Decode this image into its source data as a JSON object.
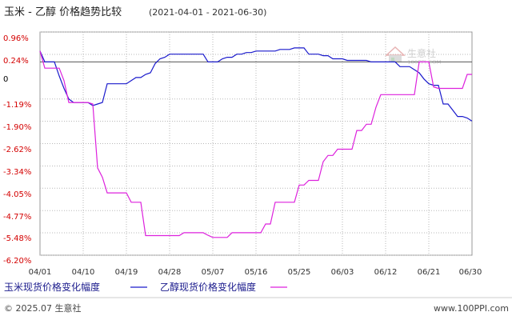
{
  "header": {
    "title": "玉米 - 乙醇 价格趋势比较",
    "date_range": "(2021-04-01 - 2021-06-30)"
  },
  "watermark": {
    "brand": "生意社",
    "url": "100PPI.COM"
  },
  "footer": {
    "copyright": "© 2025.07 生意社",
    "site": "www.100PPI.com"
  },
  "colors": {
    "series_corn": "#1a1acc",
    "series_ethanol": "#dd22dd",
    "axis_label": "#d40000",
    "grid": "#b8b8b8",
    "zero_line": "#555555"
  },
  "chart_data": {
    "type": "line",
    "title": "玉米 - 乙醇 价格趋势比较",
    "xlabel": "",
    "ylabel": "",
    "ylim": [
      -6.2,
      0.96
    ],
    "yticks": [
      "0.96%",
      "0.24%",
      "0",
      "-1.19%",
      "-1.90%",
      "-2.62%",
      "-3.34%",
      "-4.05%",
      "-4.77%",
      "-5.48%",
      "-6.20%"
    ],
    "ytick_values": [
      0.96,
      0.24,
      0,
      -1.19,
      -1.9,
      -2.62,
      -3.34,
      -4.05,
      -4.77,
      -5.48,
      -6.2
    ],
    "xticks": [
      "04/01",
      "04/10",
      "04/19",
      "04/28",
      "05/07",
      "05/16",
      "05/25",
      "06/03",
      "06/12",
      "06/21",
      "06/30"
    ],
    "x_range": [
      "2021-04-01",
      "2021-06-30"
    ],
    "grid": true,
    "legend_position": "bottom",
    "series": [
      {
        "name": "玉米现货价格变化幅度",
        "color": "#1a1acc",
        "points": [
          [
            "2021-04-01",
            0.35
          ],
          [
            "2021-04-02",
            0.0
          ],
          [
            "2021-04-03",
            0.0
          ],
          [
            "2021-04-04",
            0.0
          ],
          [
            "2021-04-05",
            -0.45
          ],
          [
            "2021-04-06",
            -0.85
          ],
          [
            "2021-04-07",
            -1.19
          ],
          [
            "2021-04-08",
            -1.3
          ],
          [
            "2021-04-09",
            -1.3
          ],
          [
            "2021-04-10",
            -1.3
          ],
          [
            "2021-04-11",
            -1.3
          ],
          [
            "2021-04-12",
            -1.4
          ],
          [
            "2021-04-13",
            -1.35
          ],
          [
            "2021-04-14",
            -1.3
          ],
          [
            "2021-04-15",
            -0.7
          ],
          [
            "2021-04-16",
            -0.7
          ],
          [
            "2021-04-17",
            -0.7
          ],
          [
            "2021-04-18",
            -0.7
          ],
          [
            "2021-04-19",
            -0.7
          ],
          [
            "2021-04-20",
            -0.6
          ],
          [
            "2021-04-21",
            -0.5
          ],
          [
            "2021-04-22",
            -0.5
          ],
          [
            "2021-04-23",
            -0.4
          ],
          [
            "2021-04-24",
            -0.35
          ],
          [
            "2021-04-25",
            -0.05
          ],
          [
            "2021-04-26",
            0.1
          ],
          [
            "2021-04-27",
            0.15
          ],
          [
            "2021-04-28",
            0.25
          ],
          [
            "2021-04-29",
            0.25
          ],
          [
            "2021-04-30",
            0.25
          ],
          [
            "2021-05-01",
            0.25
          ],
          [
            "2021-05-02",
            0.25
          ],
          [
            "2021-05-03",
            0.25
          ],
          [
            "2021-05-04",
            0.25
          ],
          [
            "2021-05-05",
            0.25
          ],
          [
            "2021-05-06",
            0.0
          ],
          [
            "2021-05-07",
            0.0
          ],
          [
            "2021-05-08",
            0.0
          ],
          [
            "2021-05-09",
            0.1
          ],
          [
            "2021-05-10",
            0.15
          ],
          [
            "2021-05-11",
            0.15
          ],
          [
            "2021-05-12",
            0.25
          ],
          [
            "2021-05-13",
            0.25
          ],
          [
            "2021-05-14",
            0.3
          ],
          [
            "2021-05-15",
            0.3
          ],
          [
            "2021-05-16",
            0.35
          ],
          [
            "2021-05-17",
            0.35
          ],
          [
            "2021-05-18",
            0.35
          ],
          [
            "2021-05-19",
            0.35
          ],
          [
            "2021-05-20",
            0.35
          ],
          [
            "2021-05-21",
            0.4
          ],
          [
            "2021-05-22",
            0.4
          ],
          [
            "2021-05-23",
            0.4
          ],
          [
            "2021-05-24",
            0.45
          ],
          [
            "2021-05-25",
            0.45
          ],
          [
            "2021-05-26",
            0.45
          ],
          [
            "2021-05-27",
            0.25
          ],
          [
            "2021-05-28",
            0.25
          ],
          [
            "2021-05-29",
            0.25
          ],
          [
            "2021-05-30",
            0.2
          ],
          [
            "2021-05-31",
            0.2
          ],
          [
            "2021-06-01",
            0.1
          ],
          [
            "2021-06-02",
            0.1
          ],
          [
            "2021-06-03",
            0.1
          ],
          [
            "2021-06-04",
            0.05
          ],
          [
            "2021-06-05",
            0.05
          ],
          [
            "2021-06-06",
            0.05
          ],
          [
            "2021-06-07",
            0.05
          ],
          [
            "2021-06-08",
            0.05
          ],
          [
            "2021-06-09",
            0.0
          ],
          [
            "2021-06-10",
            0.0
          ],
          [
            "2021-06-11",
            0.0
          ],
          [
            "2021-06-12",
            0.0
          ],
          [
            "2021-06-13",
            0.0
          ],
          [
            "2021-06-14",
            0.0
          ],
          [
            "2021-06-15",
            -0.15
          ],
          [
            "2021-06-16",
            -0.15
          ],
          [
            "2021-06-17",
            -0.15
          ],
          [
            "2021-06-18",
            -0.25
          ],
          [
            "2021-06-19",
            -0.35
          ],
          [
            "2021-06-20",
            -0.55
          ],
          [
            "2021-06-21",
            -0.7
          ],
          [
            "2021-06-22",
            -0.75
          ],
          [
            "2021-06-23",
            -0.75
          ],
          [
            "2021-06-24",
            -1.35
          ],
          [
            "2021-06-25",
            -1.35
          ],
          [
            "2021-06-26",
            -1.55
          ],
          [
            "2021-06-27",
            -1.75
          ],
          [
            "2021-06-28",
            -1.75
          ],
          [
            "2021-06-29",
            -1.8
          ],
          [
            "2021-06-30",
            -1.9
          ]
        ]
      },
      {
        "name": "乙醇现货价格变化幅度",
        "color": "#dd22dd",
        "points": [
          [
            "2021-04-01",
            0.35
          ],
          [
            "2021-04-02",
            -0.2
          ],
          [
            "2021-04-03",
            -0.2
          ],
          [
            "2021-04-04",
            -0.2
          ],
          [
            "2021-04-05",
            -0.2
          ],
          [
            "2021-04-06",
            -0.6
          ],
          [
            "2021-04-07",
            -1.3
          ],
          [
            "2021-04-08",
            -1.3
          ],
          [
            "2021-04-09",
            -1.3
          ],
          [
            "2021-04-10",
            -1.3
          ],
          [
            "2021-04-11",
            -1.3
          ],
          [
            "2021-04-12",
            -1.35
          ],
          [
            "2021-04-13",
            -3.4
          ],
          [
            "2021-04-14",
            -3.7
          ],
          [
            "2021-04-15",
            -4.2
          ],
          [
            "2021-04-16",
            -4.2
          ],
          [
            "2021-04-17",
            -4.2
          ],
          [
            "2021-04-18",
            -4.2
          ],
          [
            "2021-04-19",
            -4.2
          ],
          [
            "2021-04-20",
            -4.5
          ],
          [
            "2021-04-21",
            -4.5
          ],
          [
            "2021-04-22",
            -4.5
          ],
          [
            "2021-04-23",
            -5.57
          ],
          [
            "2021-04-24",
            -5.57
          ],
          [
            "2021-04-25",
            -5.57
          ],
          [
            "2021-04-26",
            -5.57
          ],
          [
            "2021-04-27",
            -5.57
          ],
          [
            "2021-04-28",
            -5.57
          ],
          [
            "2021-04-29",
            -5.57
          ],
          [
            "2021-04-30",
            -5.57
          ],
          [
            "2021-05-01",
            -5.48
          ],
          [
            "2021-05-02",
            -5.48
          ],
          [
            "2021-05-03",
            -5.48
          ],
          [
            "2021-05-04",
            -5.48
          ],
          [
            "2021-05-05",
            -5.48
          ],
          [
            "2021-05-06",
            -5.56
          ],
          [
            "2021-05-07",
            -5.63
          ],
          [
            "2021-05-08",
            -5.63
          ],
          [
            "2021-05-09",
            -5.63
          ],
          [
            "2021-05-10",
            -5.63
          ],
          [
            "2021-05-11",
            -5.48
          ],
          [
            "2021-05-12",
            -5.48
          ],
          [
            "2021-05-13",
            -5.48
          ],
          [
            "2021-05-14",
            -5.48
          ],
          [
            "2021-05-15",
            -5.48
          ],
          [
            "2021-05-16",
            -5.48
          ],
          [
            "2021-05-17",
            -5.48
          ],
          [
            "2021-05-18",
            -5.2
          ],
          [
            "2021-05-19",
            -5.2
          ],
          [
            "2021-05-20",
            -4.5
          ],
          [
            "2021-05-21",
            -4.5
          ],
          [
            "2021-05-22",
            -4.5
          ],
          [
            "2021-05-23",
            -4.5
          ],
          [
            "2021-05-24",
            -4.5
          ],
          [
            "2021-05-25",
            -3.95
          ],
          [
            "2021-05-26",
            -3.95
          ],
          [
            "2021-05-27",
            -3.8
          ],
          [
            "2021-05-28",
            -3.8
          ],
          [
            "2021-05-29",
            -3.8
          ],
          [
            "2021-05-30",
            -3.2
          ],
          [
            "2021-05-31",
            -3.0
          ],
          [
            "2021-06-01",
            -3.0
          ],
          [
            "2021-06-02",
            -2.8
          ],
          [
            "2021-06-03",
            -2.8
          ],
          [
            "2021-06-04",
            -2.8
          ],
          [
            "2021-06-05",
            -2.8
          ],
          [
            "2021-06-06",
            -2.2
          ],
          [
            "2021-06-07",
            -2.2
          ],
          [
            "2021-06-08",
            -2.0
          ],
          [
            "2021-06-09",
            -2.0
          ],
          [
            "2021-06-10",
            -1.45
          ],
          [
            "2021-06-11",
            -1.05
          ],
          [
            "2021-06-12",
            -1.05
          ],
          [
            "2021-06-13",
            -1.05
          ],
          [
            "2021-06-14",
            -1.05
          ],
          [
            "2021-06-15",
            -1.05
          ],
          [
            "2021-06-16",
            -1.05
          ],
          [
            "2021-06-17",
            -1.05
          ],
          [
            "2021-06-18",
            -1.05
          ],
          [
            "2021-06-19",
            0.0
          ],
          [
            "2021-06-20",
            0.0
          ],
          [
            "2021-06-21",
            0.0
          ],
          [
            "2021-06-22",
            -0.8
          ],
          [
            "2021-06-23",
            -0.85
          ],
          [
            "2021-06-24",
            -0.85
          ],
          [
            "2021-06-25",
            -0.85
          ],
          [
            "2021-06-26",
            -0.85
          ],
          [
            "2021-06-27",
            -0.85
          ],
          [
            "2021-06-28",
            -0.85
          ],
          [
            "2021-06-29",
            -0.4
          ],
          [
            "2021-06-30",
            -0.4
          ]
        ]
      }
    ]
  }
}
